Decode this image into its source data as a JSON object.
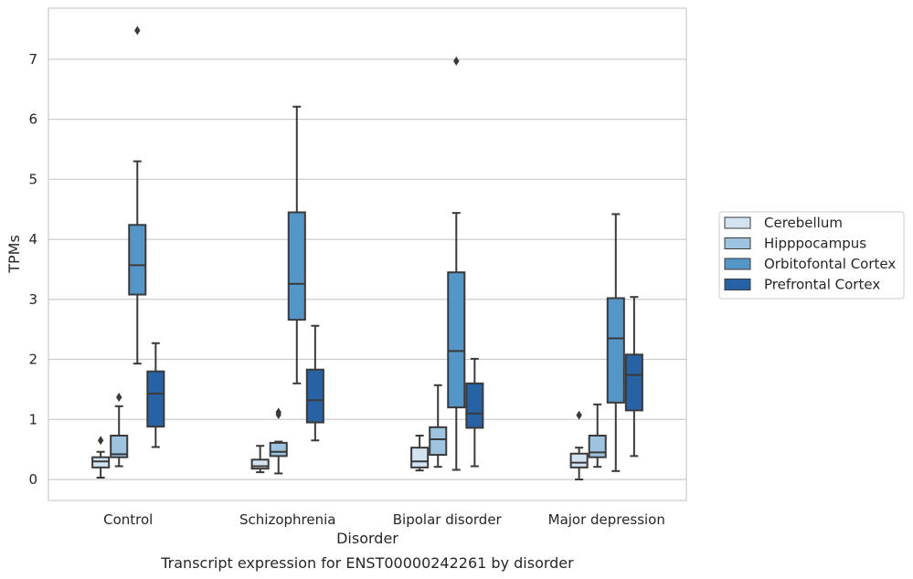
{
  "caption": "Transcript expression for ENST00000242261 by disorder",
  "chart_data": {
    "type": "box",
    "title": "",
    "xlabel": "Disorder",
    "ylabel": "TPMs",
    "ylim": [
      -0.35,
      7.85
    ],
    "yticks": [
      0,
      1,
      2,
      3,
      4,
      5,
      6,
      7
    ],
    "grid": "horizontal",
    "legend_position": "right",
    "categories": [
      "Control",
      "Schizophrenia",
      "Bipolar disorder",
      "Major depression"
    ],
    "series": [
      {
        "name": "Cerebellum",
        "color": "#d4e3f0",
        "boxes": [
          {
            "whislo": 0.03,
            "q1": 0.2,
            "med": 0.3,
            "q3": 0.37,
            "whishi": 0.46,
            "fliers": [
              0.65
            ]
          },
          {
            "whislo": 0.12,
            "q1": 0.18,
            "med": 0.22,
            "q3": 0.33,
            "whishi": 0.56,
            "fliers": []
          },
          {
            "whislo": 0.15,
            "q1": 0.2,
            "med": 0.3,
            "q3": 0.53,
            "whishi": 0.73,
            "fliers": []
          },
          {
            "whislo": 0.0,
            "q1": 0.2,
            "med": 0.28,
            "q3": 0.43,
            "whishi": 0.53,
            "fliers": [
              1.07
            ]
          }
        ]
      },
      {
        "name": "Hipppocampus",
        "color": "#9dc3df",
        "boxes": [
          {
            "whislo": 0.22,
            "q1": 0.37,
            "med": 0.42,
            "q3": 0.73,
            "whishi": 1.22,
            "fliers": [
              1.37
            ]
          },
          {
            "whislo": 0.1,
            "q1": 0.39,
            "med": 0.46,
            "q3": 0.61,
            "whishi": 0.63,
            "fliers": [
              1.08,
              1.12
            ]
          },
          {
            "whislo": 0.21,
            "q1": 0.41,
            "med": 0.67,
            "q3": 0.87,
            "whishi": 1.57,
            "fliers": []
          },
          {
            "whislo": 0.21,
            "q1": 0.37,
            "med": 0.45,
            "q3": 0.73,
            "whishi": 1.25,
            "fliers": []
          }
        ]
      },
      {
        "name": "Orbitofontal Cortex",
        "color": "#5596c8",
        "boxes": [
          {
            "whislo": 1.93,
            "q1": 3.08,
            "med": 3.57,
            "q3": 4.24,
            "whishi": 5.3,
            "fliers": [
              7.48
            ]
          },
          {
            "whislo": 1.6,
            "q1": 2.66,
            "med": 3.26,
            "q3": 4.45,
            "whishi": 6.21,
            "fliers": []
          },
          {
            "whislo": 0.16,
            "q1": 1.2,
            "med": 2.14,
            "q3": 3.45,
            "whishi": 4.44,
            "fliers": [
              6.97
            ]
          },
          {
            "whislo": 0.14,
            "q1": 1.28,
            "med": 2.35,
            "q3": 3.02,
            "whishi": 4.42,
            "fliers": []
          }
        ]
      },
      {
        "name": "Prefrontal Cortex",
        "color": "#2662a4",
        "boxes": [
          {
            "whislo": 0.54,
            "q1": 0.88,
            "med": 1.43,
            "q3": 1.8,
            "whishi": 2.27,
            "fliers": []
          },
          {
            "whislo": 0.65,
            "q1": 0.95,
            "med": 1.32,
            "q3": 1.83,
            "whishi": 2.56,
            "fliers": []
          },
          {
            "whislo": 0.22,
            "q1": 0.86,
            "med": 1.1,
            "q3": 1.6,
            "whishi": 2.01,
            "fliers": []
          },
          {
            "whislo": 0.39,
            "q1": 1.15,
            "med": 1.74,
            "q3": 2.08,
            "whishi": 3.04,
            "fliers": []
          }
        ]
      }
    ]
  }
}
